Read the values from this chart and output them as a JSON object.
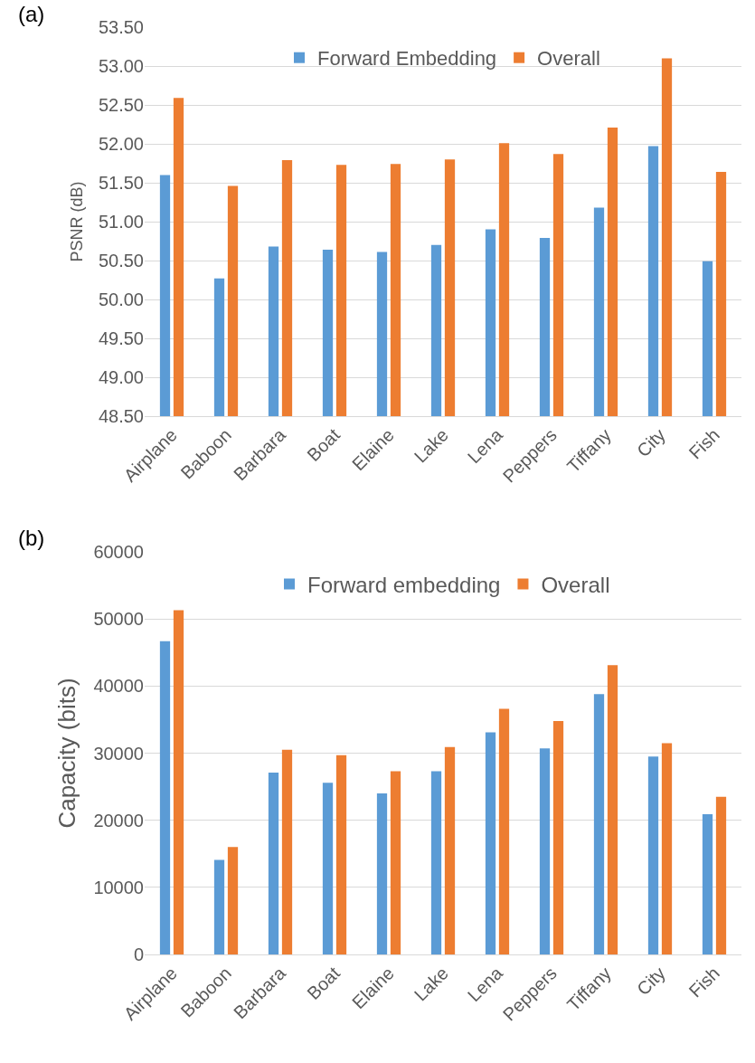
{
  "chart_data": [
    {
      "type": "bar",
      "annotations": [
        "(a)"
      ],
      "ylabel": "PSNR (dB)",
      "categories": [
        "Airplane",
        "Baboon",
        "Barbara",
        "Boat",
        "Elaine",
        "Lake",
        "Lena",
        "Peppers",
        "Tiffany",
        "City",
        "Fish"
      ],
      "series": [
        {
          "name": "Forward Embedding",
          "color": "#5b9bd5",
          "values": [
            51.6,
            50.27,
            50.68,
            50.64,
            50.61,
            50.7,
            50.9,
            50.79,
            51.18,
            51.97,
            50.49
          ]
        },
        {
          "name": "Overall",
          "color": "#ed7d31",
          "values": [
            52.59,
            51.46,
            51.79,
            51.73,
            51.74,
            51.8,
            52.01,
            51.87,
            52.21,
            53.1,
            51.64
          ]
        }
      ],
      "ylim": [
        48.5,
        53.5
      ],
      "yticks": [
        {
          "value": 48.5,
          "label": "48.50"
        },
        {
          "value": 49,
          "label": "49.00"
        },
        {
          "value": 49.5,
          "label": "49.50"
        },
        {
          "value": 50,
          "label": "50.00"
        },
        {
          "value": 50.5,
          "label": "50.50"
        },
        {
          "value": 51,
          "label": "51.00"
        },
        {
          "value": 51.5,
          "label": "51.50"
        },
        {
          "value": 52,
          "label": "52.00"
        },
        {
          "value": 52.5,
          "label": "52.50"
        },
        {
          "value": 53,
          "label": "53.00"
        },
        {
          "value": 53.5,
          "label": "53.50"
        }
      ],
      "grid": "y",
      "legend": "top"
    },
    {
      "type": "bar",
      "annotations": [
        "(b)"
      ],
      "ylabel": "Capacity (bits)",
      "categories": [
        "Airplane",
        "Baboon",
        "Barbara",
        "Boat",
        "Elaine",
        "Lake",
        "Lena",
        "Peppers",
        "Tiffany",
        "City",
        "Fish"
      ],
      "series": [
        {
          "name": "Forward embedding",
          "color": "#5b9bd5",
          "values": [
            46700,
            14100,
            27100,
            25600,
            24000,
            27300,
            33100,
            30700,
            38800,
            29500,
            20900
          ]
        },
        {
          "name": "Overall",
          "color": "#ed7d31",
          "values": [
            51300,
            16000,
            30500,
            29700,
            27300,
            30900,
            36600,
            34800,
            43100,
            31500,
            23500
          ]
        }
      ],
      "ylim": [
        0,
        60000
      ],
      "yticks": [
        0,
        10000,
        20000,
        30000,
        40000,
        50000,
        60000
      ],
      "grid": "y",
      "legend": "top"
    }
  ]
}
